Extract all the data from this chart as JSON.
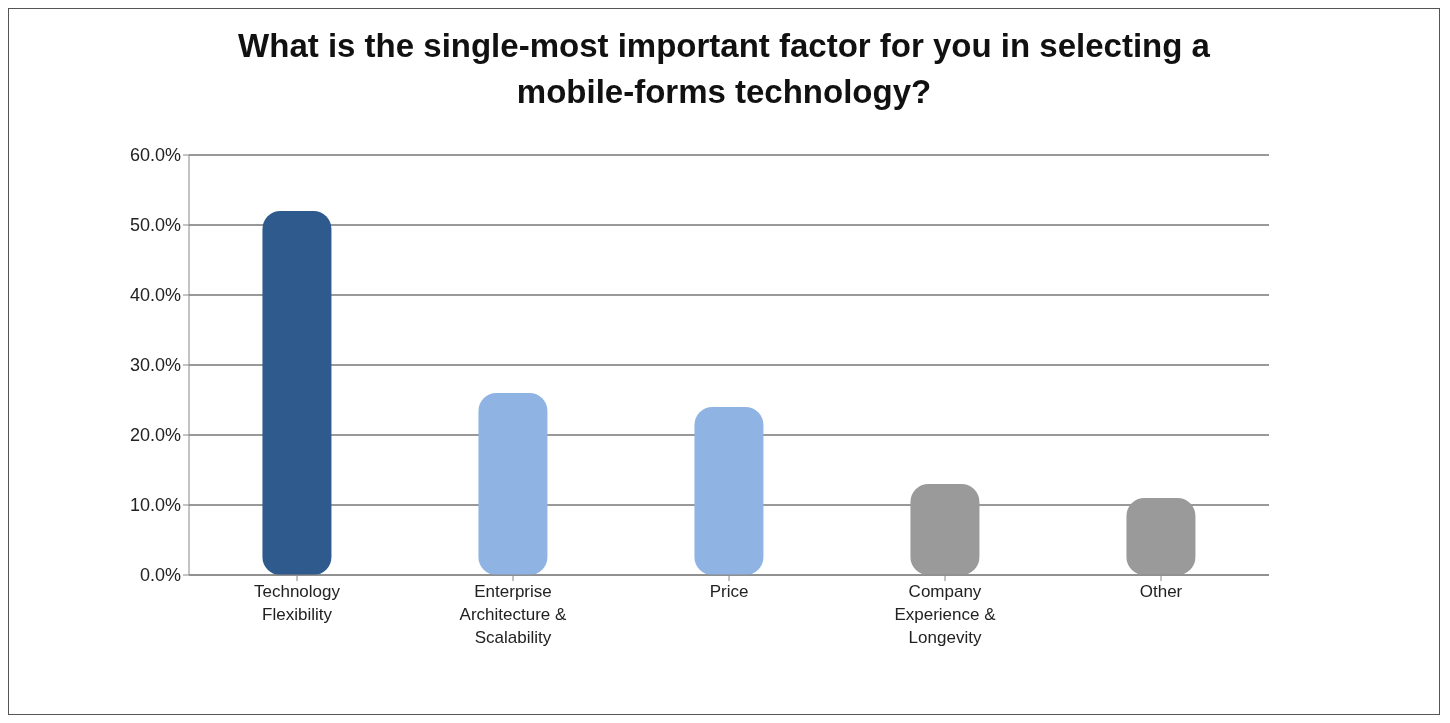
{
  "chart_data": {
    "type": "bar",
    "title": "What is the single-most important factor for you in selecting a mobile-forms technology?",
    "categories": [
      "Technology Flexibility",
      "Enterprise Architecture & Scalability",
      "Price",
      "Company Experience & Longevity",
      "Other"
    ],
    "values": [
      52,
      26,
      24,
      13,
      11
    ],
    "colors": [
      "#2e5a8e",
      "#8fb4e3",
      "#8fb4e3",
      "#9a9a9a",
      "#9a9a9a"
    ],
    "ylim": [
      0,
      60
    ],
    "yticks": [
      {
        "value": 0,
        "label": "0.0%"
      },
      {
        "value": 10,
        "label": "10.0%"
      },
      {
        "value": 20,
        "label": "20.0%"
      },
      {
        "value": 30,
        "label": "30.0%"
      },
      {
        "value": 40,
        "label": "40.0%"
      },
      {
        "value": 50,
        "label": "50.0%"
      },
      {
        "value": 60,
        "label": "60.0%"
      }
    ],
    "grid": "y",
    "legend": false
  }
}
